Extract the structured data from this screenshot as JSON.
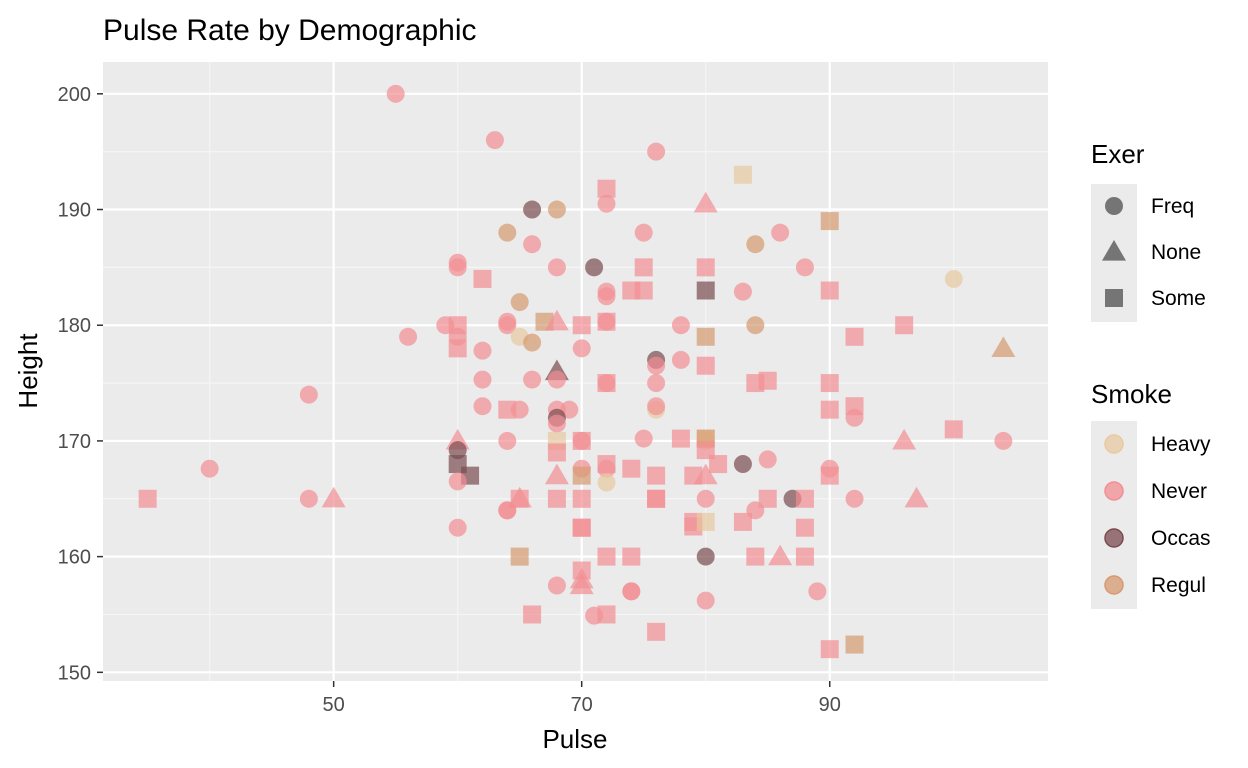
{
  "chart_data": {
    "type": "scatter",
    "title": "Pulse Rate by Demographic",
    "xlabel": "Pulse",
    "ylabel": "Height",
    "xlim": [
      31.4,
      107.6
    ],
    "ylim": [
      149.25,
      202.75
    ],
    "x_ticks": [
      50,
      70,
      90
    ],
    "y_ticks": [
      150,
      160,
      170,
      180,
      190,
      200
    ],
    "grid": true,
    "legend_position": "right",
    "shape_legend": {
      "title": "Exer",
      "entries": [
        {
          "label": "Freq",
          "shape": "circle"
        },
        {
          "label": "None",
          "shape": "triangle"
        },
        {
          "label": "Some",
          "shape": "square"
        }
      ]
    },
    "color_legend": {
      "title": "Smoke",
      "entries": [
        {
          "label": "Heavy",
          "color": "#E8C9A0"
        },
        {
          "label": "Never",
          "color": "#F28E93"
        },
        {
          "label": "Occas",
          "color": "#7B4B50"
        },
        {
          "label": "Regul",
          "color": "#D69A70"
        }
      ]
    },
    "points": [
      {
        "x": 55,
        "y": 200,
        "exer": "Freq",
        "smoke": "Never"
      },
      {
        "x": 63,
        "y": 196,
        "exer": "Freq",
        "smoke": "Never"
      },
      {
        "x": 76,
        "y": 195,
        "exer": "Freq",
        "smoke": "Never"
      },
      {
        "x": 83,
        "y": 193,
        "exer": "Some",
        "smoke": "Heavy"
      },
      {
        "x": 72,
        "y": 191.8,
        "exer": "Some",
        "smoke": "Never"
      },
      {
        "x": 72,
        "y": 190.5,
        "exer": "Freq",
        "smoke": "Never"
      },
      {
        "x": 80,
        "y": 190.5,
        "exer": "None",
        "smoke": "Never"
      },
      {
        "x": 66,
        "y": 190,
        "exer": "Freq",
        "smoke": "Occas"
      },
      {
        "x": 68,
        "y": 190,
        "exer": "Freq",
        "smoke": "Regul"
      },
      {
        "x": 90,
        "y": 189,
        "exer": "Some",
        "smoke": "Regul"
      },
      {
        "x": 64,
        "y": 188,
        "exer": "Freq",
        "smoke": "Regul"
      },
      {
        "x": 75,
        "y": 188,
        "exer": "Freq",
        "smoke": "Never"
      },
      {
        "x": 86,
        "y": 188,
        "exer": "Freq",
        "smoke": "Never"
      },
      {
        "x": 66,
        "y": 187,
        "exer": "Freq",
        "smoke": "Never"
      },
      {
        "x": 84,
        "y": 187,
        "exer": "Freq",
        "smoke": "Regul"
      },
      {
        "x": 60,
        "y": 185.4,
        "exer": "Freq",
        "smoke": "Never"
      },
      {
        "x": 60,
        "y": 185,
        "exer": "Freq",
        "smoke": "Never"
      },
      {
        "x": 68,
        "y": 185,
        "exer": "Freq",
        "smoke": "Never"
      },
      {
        "x": 71,
        "y": 185,
        "exer": "Freq",
        "smoke": "Occas"
      },
      {
        "x": 75,
        "y": 185,
        "exer": "Some",
        "smoke": "Never"
      },
      {
        "x": 80,
        "y": 185,
        "exer": "Some",
        "smoke": "Never"
      },
      {
        "x": 88,
        "y": 185,
        "exer": "Freq",
        "smoke": "Never"
      },
      {
        "x": 62,
        "y": 184,
        "exer": "Some",
        "smoke": "Never"
      },
      {
        "x": 100,
        "y": 184,
        "exer": "Freq",
        "smoke": "Heavy"
      },
      {
        "x": 74,
        "y": 183,
        "exer": "Some",
        "smoke": "Never"
      },
      {
        "x": 75,
        "y": 183,
        "exer": "Some",
        "smoke": "Never"
      },
      {
        "x": 80,
        "y": 183,
        "exer": "Some",
        "smoke": "Occas"
      },
      {
        "x": 83,
        "y": 182.9,
        "exer": "Freq",
        "smoke": "Never"
      },
      {
        "x": 90,
        "y": 183,
        "exer": "Some",
        "smoke": "Never"
      },
      {
        "x": 72,
        "y": 182.9,
        "exer": "Freq",
        "smoke": "Never"
      },
      {
        "x": 72,
        "y": 182.5,
        "exer": "Freq",
        "smoke": "Never"
      },
      {
        "x": 65,
        "y": 182,
        "exer": "Freq",
        "smoke": "Regul"
      },
      {
        "x": 64,
        "y": 180.3,
        "exer": "Freq",
        "smoke": "Never"
      },
      {
        "x": 67,
        "y": 180.3,
        "exer": "Some",
        "smoke": "Regul"
      },
      {
        "x": 68,
        "y": 180.3,
        "exer": "None",
        "smoke": "Never"
      },
      {
        "x": 72,
        "y": 180.3,
        "exer": "Freq",
        "smoke": "Never"
      },
      {
        "x": 72,
        "y": 180.3,
        "exer": "Some",
        "smoke": "Never"
      },
      {
        "x": 59,
        "y": 180,
        "exer": "Freq",
        "smoke": "Never"
      },
      {
        "x": 60,
        "y": 180,
        "exer": "Some",
        "smoke": "Never"
      },
      {
        "x": 64,
        "y": 180,
        "exer": "Freq",
        "smoke": "Never"
      },
      {
        "x": 70,
        "y": 180,
        "exer": "Some",
        "smoke": "Never"
      },
      {
        "x": 78,
        "y": 180,
        "exer": "Freq",
        "smoke": "Never"
      },
      {
        "x": 84,
        "y": 180,
        "exer": "Freq",
        "smoke": "Regul"
      },
      {
        "x": 96,
        "y": 180,
        "exer": "Some",
        "smoke": "Never"
      },
      {
        "x": 56,
        "y": 179,
        "exer": "Freq",
        "smoke": "Never"
      },
      {
        "x": 60,
        "y": 179,
        "exer": "Freq",
        "smoke": "Never"
      },
      {
        "x": 65,
        "y": 179,
        "exer": "Freq",
        "smoke": "Heavy"
      },
      {
        "x": 80,
        "y": 179,
        "exer": "Some",
        "smoke": "Regul"
      },
      {
        "x": 92,
        "y": 179,
        "exer": "Some",
        "smoke": "Never"
      },
      {
        "x": 66,
        "y": 178.5,
        "exer": "Freq",
        "smoke": "Regul"
      },
      {
        "x": 60,
        "y": 178,
        "exer": "Some",
        "smoke": "Never"
      },
      {
        "x": 62,
        "y": 177.8,
        "exer": "Freq",
        "smoke": "Never"
      },
      {
        "x": 70,
        "y": 178,
        "exer": "Freq",
        "smoke": "Never"
      },
      {
        "x": 104,
        "y": 178,
        "exer": "None",
        "smoke": "Regul"
      },
      {
        "x": 76,
        "y": 177,
        "exer": "Freq",
        "smoke": "Occas"
      },
      {
        "x": 78,
        "y": 177,
        "exer": "Freq",
        "smoke": "Never"
      },
      {
        "x": 80,
        "y": 176.5,
        "exer": "Some",
        "smoke": "Never"
      },
      {
        "x": 68,
        "y": 176,
        "exer": "None",
        "smoke": "Occas"
      },
      {
        "x": 76,
        "y": 176.5,
        "exer": "Freq",
        "smoke": "Never"
      },
      {
        "x": 62,
        "y": 175.3,
        "exer": "Freq",
        "smoke": "Never"
      },
      {
        "x": 66,
        "y": 175.3,
        "exer": "Freq",
        "smoke": "Never"
      },
      {
        "x": 68,
        "y": 175.3,
        "exer": "Freq",
        "smoke": "Never"
      },
      {
        "x": 72,
        "y": 175,
        "exer": "Freq",
        "smoke": "Never"
      },
      {
        "x": 72,
        "y": 175,
        "exer": "Some",
        "smoke": "Never"
      },
      {
        "x": 76,
        "y": 175,
        "exer": "Freq",
        "smoke": "Never"
      },
      {
        "x": 84,
        "y": 175,
        "exer": "Some",
        "smoke": "Never"
      },
      {
        "x": 85,
        "y": 175.2,
        "exer": "Some",
        "smoke": "Never"
      },
      {
        "x": 90,
        "y": 175,
        "exer": "Some",
        "smoke": "Never"
      },
      {
        "x": 48,
        "y": 174,
        "exer": "Freq",
        "smoke": "Never"
      },
      {
        "x": 62,
        "y": 173,
        "exer": "Freq",
        "smoke": "Never"
      },
      {
        "x": 64,
        "y": 172.7,
        "exer": "Some",
        "smoke": "Never"
      },
      {
        "x": 65,
        "y": 172.7,
        "exer": "Freq",
        "smoke": "Never"
      },
      {
        "x": 68,
        "y": 172.7,
        "exer": "Freq",
        "smoke": "Never"
      },
      {
        "x": 69,
        "y": 172.7,
        "exer": "Freq",
        "smoke": "Never"
      },
      {
        "x": 76,
        "y": 172.7,
        "exer": "Freq",
        "smoke": "Heavy"
      },
      {
        "x": 76,
        "y": 173,
        "exer": "Freq",
        "smoke": "Never"
      },
      {
        "x": 90,
        "y": 172.7,
        "exer": "Some",
        "smoke": "Never"
      },
      {
        "x": 92,
        "y": 173,
        "exer": "Some",
        "smoke": "Never"
      },
      {
        "x": 92,
        "y": 172,
        "exer": "Freq",
        "smoke": "Never"
      },
      {
        "x": 68,
        "y": 172,
        "exer": "Freq",
        "smoke": "Occas"
      },
      {
        "x": 68,
        "y": 171.5,
        "exer": "Freq",
        "smoke": "Never"
      },
      {
        "x": 100,
        "y": 171,
        "exer": "Some",
        "smoke": "Never"
      },
      {
        "x": 60,
        "y": 170,
        "exer": "None",
        "smoke": "Never"
      },
      {
        "x": 64,
        "y": 170,
        "exer": "Freq",
        "smoke": "Never"
      },
      {
        "x": 68,
        "y": 170,
        "exer": "Some",
        "smoke": "Heavy"
      },
      {
        "x": 70,
        "y": 170,
        "exer": "Freq",
        "smoke": "Never"
      },
      {
        "x": 70,
        "y": 170,
        "exer": "Some",
        "smoke": "Never"
      },
      {
        "x": 75,
        "y": 170.2,
        "exer": "Freq",
        "smoke": "Never"
      },
      {
        "x": 78,
        "y": 170.2,
        "exer": "Some",
        "smoke": "Never"
      },
      {
        "x": 80,
        "y": 170,
        "exer": "Freq",
        "smoke": "Heavy"
      },
      {
        "x": 80,
        "y": 170.2,
        "exer": "Some",
        "smoke": "Heavy"
      },
      {
        "x": 80,
        "y": 170.2,
        "exer": "Some",
        "smoke": "Regul"
      },
      {
        "x": 96,
        "y": 170,
        "exer": "None",
        "smoke": "Never"
      },
      {
        "x": 104,
        "y": 170,
        "exer": "Freq",
        "smoke": "Never"
      },
      {
        "x": 60,
        "y": 169.2,
        "exer": "Freq",
        "smoke": "Occas"
      },
      {
        "x": 68,
        "y": 169,
        "exer": "Some",
        "smoke": "Never"
      },
      {
        "x": 80,
        "y": 169.2,
        "exer": "Some",
        "smoke": "Never"
      },
      {
        "x": 60,
        "y": 168,
        "exer": "Some",
        "smoke": "Occas"
      },
      {
        "x": 61,
        "y": 167,
        "exer": "Some",
        "smoke": "Occas"
      },
      {
        "x": 72,
        "y": 168,
        "exer": "Some",
        "smoke": "Never"
      },
      {
        "x": 81,
        "y": 168,
        "exer": "Some",
        "smoke": "Never"
      },
      {
        "x": 83,
        "y": 168,
        "exer": "Freq",
        "smoke": "Occas"
      },
      {
        "x": 85,
        "y": 168.4,
        "exer": "Freq",
        "smoke": "Never"
      },
      {
        "x": 40,
        "y": 167.6,
        "exer": "Freq",
        "smoke": "Never"
      },
      {
        "x": 70,
        "y": 167.6,
        "exer": "Freq",
        "smoke": "Never"
      },
      {
        "x": 72,
        "y": 167.6,
        "exer": "Freq",
        "smoke": "Never"
      },
      {
        "x": 74,
        "y": 167.6,
        "exer": "Some",
        "smoke": "Never"
      },
      {
        "x": 90,
        "y": 167.6,
        "exer": "Freq",
        "smoke": "Never"
      },
      {
        "x": 68,
        "y": 167,
        "exer": "None",
        "smoke": "Never"
      },
      {
        "x": 70,
        "y": 167,
        "exer": "Some",
        "smoke": "Regul"
      },
      {
        "x": 76,
        "y": 167,
        "exer": "Some",
        "smoke": "Never"
      },
      {
        "x": 79,
        "y": 167,
        "exer": "Some",
        "smoke": "Never"
      },
      {
        "x": 80,
        "y": 167,
        "exer": "None",
        "smoke": "Never"
      },
      {
        "x": 90,
        "y": 167,
        "exer": "Some",
        "smoke": "Never"
      },
      {
        "x": 60,
        "y": 166.5,
        "exer": "Freq",
        "smoke": "Never"
      },
      {
        "x": 72,
        "y": 166.4,
        "exer": "Freq",
        "smoke": "Heavy"
      },
      {
        "x": 35,
        "y": 165,
        "exer": "Some",
        "smoke": "Never"
      },
      {
        "x": 48,
        "y": 165,
        "exer": "Freq",
        "smoke": "Never"
      },
      {
        "x": 50,
        "y": 165,
        "exer": "None",
        "smoke": "Never"
      },
      {
        "x": 65,
        "y": 165,
        "exer": "None",
        "smoke": "Never"
      },
      {
        "x": 65,
        "y": 165,
        "exer": "Some",
        "smoke": "Never"
      },
      {
        "x": 68,
        "y": 165,
        "exer": "Some",
        "smoke": "Never"
      },
      {
        "x": 70,
        "y": 165,
        "exer": "Some",
        "smoke": "Never"
      },
      {
        "x": 76,
        "y": 165,
        "exer": "Some",
        "smoke": "Never"
      },
      {
        "x": 76,
        "y": 165,
        "exer": "Some",
        "smoke": "Never"
      },
      {
        "x": 80,
        "y": 165,
        "exer": "Freq",
        "smoke": "Never"
      },
      {
        "x": 85,
        "y": 165,
        "exer": "Some",
        "smoke": "Never"
      },
      {
        "x": 87,
        "y": 165,
        "exer": "Freq",
        "smoke": "Occas"
      },
      {
        "x": 88,
        "y": 165,
        "exer": "Some",
        "smoke": "Never"
      },
      {
        "x": 92,
        "y": 165,
        "exer": "Freq",
        "smoke": "Never"
      },
      {
        "x": 97,
        "y": 165,
        "exer": "None",
        "smoke": "Never"
      },
      {
        "x": 64,
        "y": 164,
        "exer": "Freq",
        "smoke": "Never"
      },
      {
        "x": 64,
        "y": 164,
        "exer": "Freq",
        "smoke": "Never"
      },
      {
        "x": 84,
        "y": 164,
        "exer": "Freq",
        "smoke": "Never"
      },
      {
        "x": 79,
        "y": 163,
        "exer": "Some",
        "smoke": "Never"
      },
      {
        "x": 79,
        "y": 162.6,
        "exer": "Some",
        "smoke": "Never"
      },
      {
        "x": 80,
        "y": 163,
        "exer": "Some",
        "smoke": "Heavy"
      },
      {
        "x": 83,
        "y": 163,
        "exer": "Some",
        "smoke": "Never"
      },
      {
        "x": 60,
        "y": 162.5,
        "exer": "Freq",
        "smoke": "Never"
      },
      {
        "x": 70,
        "y": 162.5,
        "exer": "Some",
        "smoke": "Never"
      },
      {
        "x": 70,
        "y": 162.5,
        "exer": "Some",
        "smoke": "Never"
      },
      {
        "x": 88,
        "y": 162.5,
        "exer": "Some",
        "smoke": "Never"
      },
      {
        "x": 65,
        "y": 160,
        "exer": "Some",
        "smoke": "Regul"
      },
      {
        "x": 72,
        "y": 160,
        "exer": "Some",
        "smoke": "Never"
      },
      {
        "x": 74,
        "y": 160,
        "exer": "Some",
        "smoke": "Never"
      },
      {
        "x": 80,
        "y": 160,
        "exer": "Freq",
        "smoke": "Occas"
      },
      {
        "x": 84,
        "y": 160,
        "exer": "Some",
        "smoke": "Never"
      },
      {
        "x": 86,
        "y": 160,
        "exer": "None",
        "smoke": "Never"
      },
      {
        "x": 88,
        "y": 160,
        "exer": "Some",
        "smoke": "Never"
      },
      {
        "x": 70,
        "y": 158.8,
        "exer": "Some",
        "smoke": "Never"
      },
      {
        "x": 70,
        "y": 158,
        "exer": "None",
        "smoke": "Never"
      },
      {
        "x": 70,
        "y": 157.5,
        "exer": "None",
        "smoke": "Never"
      },
      {
        "x": 68,
        "y": 157.5,
        "exer": "Freq",
        "smoke": "Never"
      },
      {
        "x": 74,
        "y": 157,
        "exer": "Freq",
        "smoke": "Never"
      },
      {
        "x": 74,
        "y": 157,
        "exer": "Freq",
        "smoke": "Never"
      },
      {
        "x": 89,
        "y": 157,
        "exer": "Freq",
        "smoke": "Never"
      },
      {
        "x": 80,
        "y": 156.2,
        "exer": "Freq",
        "smoke": "Never"
      },
      {
        "x": 66,
        "y": 155,
        "exer": "Some",
        "smoke": "Never"
      },
      {
        "x": 71,
        "y": 154.9,
        "exer": "Freq",
        "smoke": "Never"
      },
      {
        "x": 72,
        "y": 155,
        "exer": "Some",
        "smoke": "Never"
      },
      {
        "x": 76,
        "y": 153.5,
        "exer": "Some",
        "smoke": "Never"
      },
      {
        "x": 92,
        "y": 152.4,
        "exer": "Some",
        "smoke": "Regul"
      },
      {
        "x": 90,
        "y": 152,
        "exer": "Some",
        "smoke": "Never"
      }
    ]
  }
}
